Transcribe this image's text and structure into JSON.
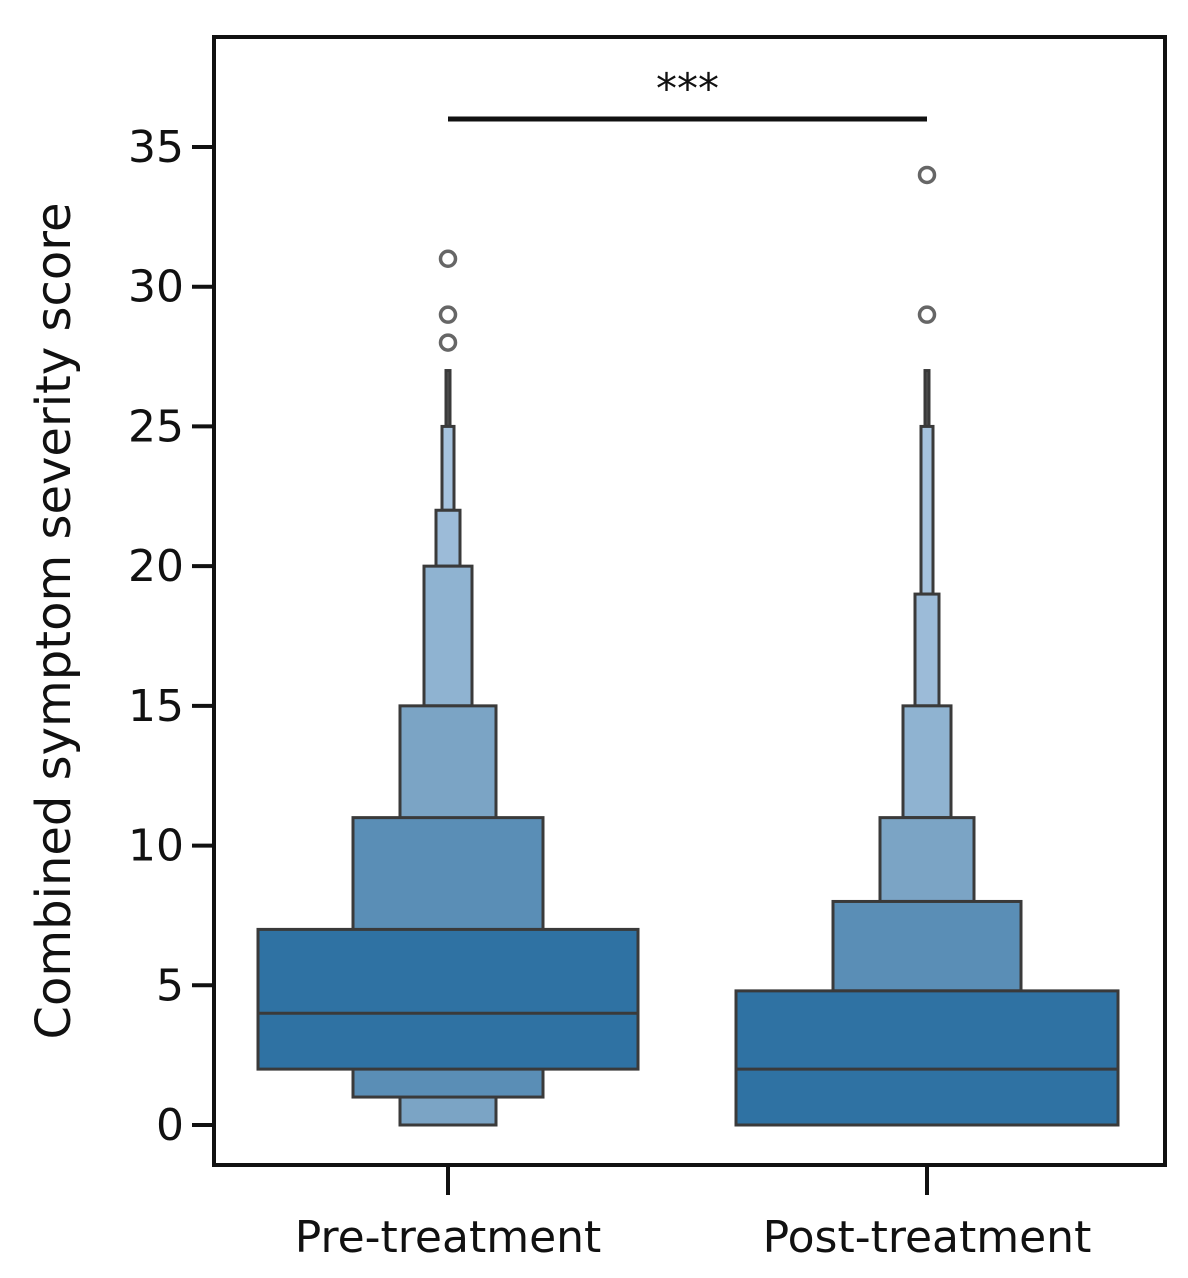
{
  "chart_data": {
    "type": "boxen",
    "title": "",
    "xlabel": "",
    "ylabel": "Combined symptom severity score",
    "ylim": [
      -1.2,
      39.5
    ],
    "yticks": [
      0,
      5,
      10,
      15,
      20,
      25,
      30,
      35
    ],
    "categories": [
      "Pre-treatment",
      "Post-treatment"
    ],
    "grid": false,
    "base_color": "#2f72a3",
    "series": [
      {
        "name": "Pre-treatment",
        "median": 4,
        "boxes": [
          {
            "low": 2,
            "high": 7,
            "color": "#2f72a3"
          },
          {
            "low": 1,
            "high": 11,
            "color": "#5a8eb6"
          },
          {
            "low": 0,
            "high": 15,
            "color": "#7ba4c5"
          },
          {
            "low": 20,
            "high": 20,
            "color": "#8fb3d1"
          },
          {
            "low": 22,
            "high": 22,
            "color": "#9cbbd8"
          },
          {
            "low": 25,
            "high": 25,
            "color": "#a6c3de"
          },
          {
            "low": 27,
            "high": 27,
            "color": "#555555"
          }
        ],
        "outliers": [
          28,
          29,
          31
        ]
      },
      {
        "name": "Post-treatment",
        "median": 2,
        "boxes": [
          {
            "low": 0,
            "high": 4.8,
            "color": "#2f72a3"
          },
          {
            "low": 8,
            "high": 8,
            "color": "#5a8eb6"
          },
          {
            "low": 11,
            "high": 11,
            "color": "#7ba4c5"
          },
          {
            "low": 15,
            "high": 15,
            "color": "#8fb3d1"
          },
          {
            "low": 19,
            "high": 19,
            "color": "#9cbbd8"
          },
          {
            "low": 25,
            "high": 25,
            "color": "#a6c3de"
          },
          {
            "low": 27,
            "high": 27,
            "color": "#555555"
          }
        ],
        "outliers": [
          29,
          34
        ]
      }
    ],
    "significance": {
      "label": "***",
      "y": 36,
      "from": "Pre-treatment",
      "to": "Post-treatment"
    }
  }
}
